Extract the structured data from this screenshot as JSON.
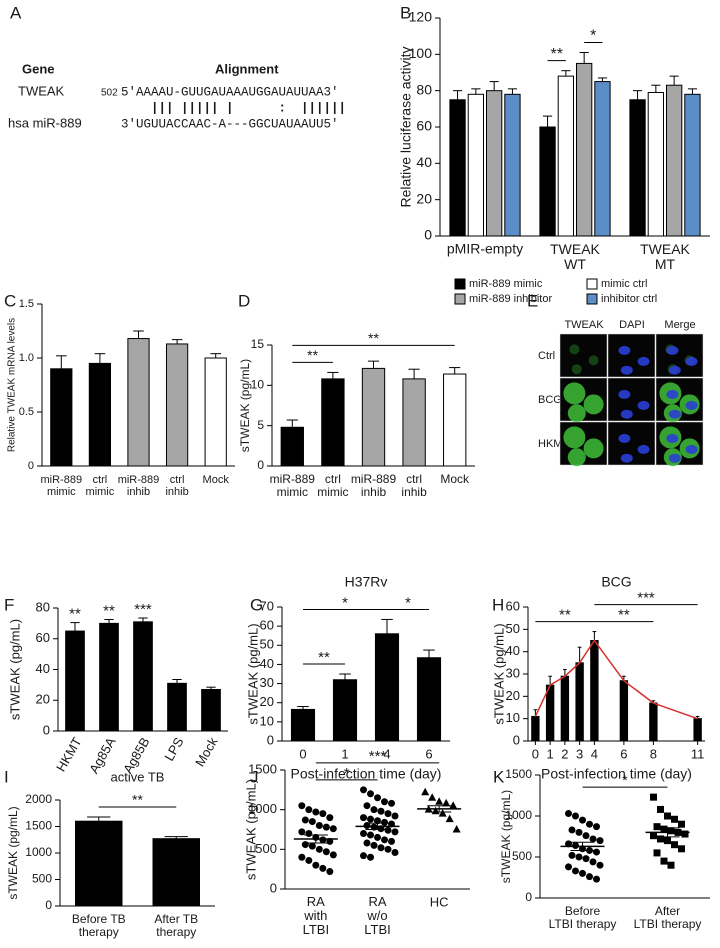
{
  "panel_a": {
    "label": "A",
    "gene_header": "Gene",
    "alignment_header": "Alignment",
    "rows": [
      {
        "name": "TWEAK",
        "position": "502",
        "sequence": "5′AAAAU-GUUGAUAAAUGGAUAUUAA3′"
      },
      {
        "name": "hsa miR-889",
        "sequence": "3′UGUUACCAAC-A---GGCUAUAAUU5′"
      }
    ],
    "pairing": "    ||| ||||| |      :  ||||||"
  },
  "panel_e": {
    "label": "E",
    "columns": [
      "TWEAK",
      "DAPI",
      "Merge"
    ],
    "rows": [
      "Ctrl",
      "BCG",
      "HKMT"
    ]
  },
  "chart_data": [
    {
      "panel": "B",
      "type": "bar",
      "ylabel": "Relative luciferase activity",
      "categories": [
        "pMIR-empty",
        "TWEAK\nWT",
        "TWEAK\nMT"
      ],
      "series": [
        {
          "name": "miR-889 mimic",
          "color": "#000000",
          "values": [
            75,
            60,
            75
          ],
          "errors": [
            5,
            6,
            5
          ]
        },
        {
          "name": "mimic ctrl",
          "color": "#ffffff",
          "values": [
            78,
            88,
            79
          ],
          "errors": [
            3,
            3,
            4
          ]
        },
        {
          "name": "miR-889 inhibitor",
          "color": "#a6a6a6",
          "values": [
            80,
            95,
            83
          ],
          "errors": [
            5,
            6,
            5
          ]
        },
        {
          "name": "inhibitor ctrl",
          "color": "#5b8ec6",
          "values": [
            78,
            85,
            78
          ],
          "errors": [
            3,
            2,
            3
          ]
        }
      ],
      "ylim": [
        0,
        120
      ],
      "yticks": [
        0,
        20,
        40,
        60,
        80,
        100,
        120
      ],
      "annotations": [
        {
          "text": "**",
          "category": 1,
          "from": 0,
          "to": 1
        },
        {
          "text": "*",
          "category": 1,
          "from": 2,
          "to": 3
        }
      ]
    },
    {
      "panel": "C",
      "type": "bar",
      "ylabel": "Relative TWEAK mRNA levels",
      "categories": [
        "miR-889\nmimic",
        "ctrl\nmimic",
        "miR-889\ninhib",
        "ctrl\ninhib",
        "Mock"
      ],
      "values": [
        0.9,
        0.95,
        1.18,
        1.13,
        1.0
      ],
      "errors": [
        0.12,
        0.09,
        0.07,
        0.04,
        0.04
      ],
      "colors": [
        "#000000",
        "#000000",
        "#a6a6a6",
        "#a6a6a6",
        "#ffffff"
      ],
      "ylim": [
        0,
        1.5
      ],
      "yticks": [
        0,
        0.5,
        {
          "value": 1,
          "label": "1.0"
        },
        1.5
      ]
    },
    {
      "panel": "D",
      "type": "bar",
      "ylabel": "sTWEAK (pg/mL)",
      "categories": [
        "miR-889\nmimic",
        "ctrl\nmimic",
        "miR-889\ninhib",
        "ctrl\ninhib",
        "Mock"
      ],
      "values": [
        4.8,
        10.8,
        12.1,
        10.8,
        11.4
      ],
      "errors": [
        0.9,
        0.8,
        0.9,
        1.2,
        0.8
      ],
      "colors": [
        "#000000",
        "#000000",
        "#a6a6a6",
        "#a6a6a6",
        "#ffffff"
      ],
      "ylim": [
        0,
        15
      ],
      "yticks": [
        0,
        5,
        10,
        15
      ],
      "annotations": [
        {
          "text": "**",
          "from": 0,
          "to": 1
        },
        {
          "text": "**",
          "from": 0,
          "to": 4
        }
      ]
    },
    {
      "panel": "F",
      "type": "bar",
      "ylabel": "sTWEAK (pg/mL)",
      "categories": [
        "HKMT",
        "Ag85A",
        "Ag85B",
        "LPS",
        "Mock"
      ],
      "values": [
        65,
        70,
        71,
        31,
        27
      ],
      "errors": [
        5.5,
        2.5,
        2.5,
        2.5,
        1.5
      ],
      "color": "#000000",
      "ylim": [
        0,
        80
      ],
      "yticks": [
        0,
        20,
        40,
        60,
        80
      ],
      "annotations": [
        {
          "text": "**",
          "at": 0
        },
        {
          "text": "**",
          "at": 1
        },
        {
          "text": "***",
          "at": 2
        }
      ]
    },
    {
      "panel": "G",
      "type": "bar",
      "title": "H37Rv",
      "ylabel": "sTWEAK (pg/mL)",
      "xlabel": "Post-infection time (day)",
      "categories": [
        "0",
        "1",
        "4",
        "6"
      ],
      "values": [
        16.5,
        32,
        56,
        43.5
      ],
      "errors": [
        1.5,
        3,
        7.5,
        4
      ],
      "color": "#000000",
      "ylim": [
        0,
        70
      ],
      "yticks": [
        0,
        10,
        20,
        30,
        40,
        50,
        60,
        70
      ],
      "annotations": [
        {
          "text": "**",
          "from": 0,
          "to": 1
        },
        {
          "text": "*",
          "from": 0,
          "to": 2
        },
        {
          "text": "*",
          "from": 2,
          "to": 3
        }
      ]
    },
    {
      "panel": "H",
      "type": "bar",
      "title": "BCG",
      "ylabel": "sTWEAK (pg/mL)",
      "xlabel": "Post-infection time (day)",
      "x": [
        0,
        1,
        2,
        3,
        4,
        6,
        8,
        11
      ],
      "values": [
        11,
        25,
        29,
        35,
        45,
        27,
        17,
        10
      ],
      "errors": [
        3,
        4,
        3,
        7,
        4,
        2,
        1,
        1
      ],
      "color": "#000000",
      "line_color": "#d7312e",
      "xlim": [
        -0.5,
        11.5
      ],
      "xticks": [
        0,
        1,
        2,
        3,
        4,
        6,
        8,
        11
      ],
      "ylim": [
        0,
        60
      ],
      "yticks": [
        0,
        10,
        20,
        30,
        40,
        50,
        60
      ],
      "annotations": [
        {
          "text": "**",
          "from": 0,
          "to": 4
        },
        {
          "text": "**",
          "from": 4,
          "to": 6
        },
        {
          "text": "***",
          "from": 4,
          "to": 7
        }
      ]
    },
    {
      "panel": "I",
      "type": "bar",
      "title": "active TB",
      "ylabel": "sTWEAK (pg/mL)",
      "categories": [
        "Before TB\ntherapy",
        "After TB\ntherapy"
      ],
      "values": [
        1600,
        1270
      ],
      "errors": [
        80,
        40
      ],
      "color": "#000000",
      "ylim": [
        0,
        2000
      ],
      "yticks": [
        0,
        500,
        1000,
        1500,
        2000
      ],
      "annotations": [
        {
          "text": "**",
          "from": 0,
          "to": 1
        }
      ]
    },
    {
      "panel": "J",
      "type": "dot",
      "ylabel": "sTWEAK (pg/mL)",
      "categories": [
        "RA\nwith\nLTBI",
        "RA\nw/o\nLTBI",
        "HC"
      ],
      "groups": [
        {
          "marker": "circle",
          "values": [
            1050,
            1000,
            970,
            950,
            900,
            870,
            850,
            800,
            780,
            760,
            720,
            700,
            650,
            620,
            600,
            560,
            540,
            500,
            470,
            430,
            400,
            360,
            300,
            260,
            220
          ]
        },
        {
          "marker": "circle",
          "values": [
            1250,
            1200,
            1150,
            1100,
            1080,
            1050,
            1000,
            980,
            950,
            920,
            900,
            880,
            860,
            840,
            820,
            800,
            780,
            760,
            740,
            720,
            700,
            680,
            650,
            620,
            600,
            580,
            550,
            520,
            500,
            460,
            420,
            400
          ]
        },
        {
          "marker": "triangle",
          "values": [
            1220,
            1150,
            1100,
            1080,
            1050,
            1000,
            980,
            950,
            880,
            750
          ]
        }
      ],
      "means": [
        630,
        790,
        1010
      ],
      "sems": [
        50,
        40,
        40
      ],
      "ylim": [
        0,
        1500
      ],
      "yticks": [
        0,
        500,
        1000,
        1500
      ],
      "annotations": [
        {
          "text": "*",
          "from": 0,
          "to": 1
        },
        {
          "text": "***",
          "from": 0,
          "to": 2
        }
      ]
    },
    {
      "panel": "K",
      "type": "dot",
      "ylabel": "sTWEAK (pg/mL)",
      "categories": [
        "Before\nLTBI therapy",
        "After\nLTBI therapy"
      ],
      "groups": [
        {
          "marker": "circle",
          "values": [
            1030,
            1000,
            950,
            900,
            870,
            830,
            800,
            760,
            720,
            700,
            660,
            640,
            600,
            580,
            560,
            520,
            500,
            480,
            440,
            400,
            380,
            330,
            300,
            260,
            230
          ]
        },
        {
          "marker": "square",
          "values": [
            1230,
            1080,
            1000,
            960,
            900,
            870,
            840,
            820,
            800,
            780,
            760,
            720,
            700,
            650,
            600,
            550,
            450,
            400
          ]
        }
      ],
      "means": [
        630,
        800
      ],
      "sems": [
        50,
        55
      ],
      "ylim": [
        0,
        1500
      ],
      "yticks": [
        0,
        500,
        1000,
        1500
      ],
      "annotations": [
        {
          "text": "*",
          "from": 0,
          "to": 1
        }
      ]
    }
  ]
}
